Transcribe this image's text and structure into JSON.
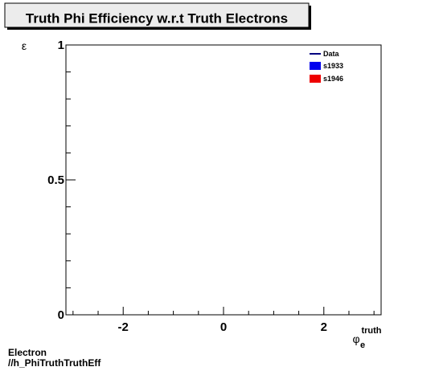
{
  "chart_data": {
    "type": "line",
    "title": "Truth Phi Efficiency w.r.t Truth Electrons",
    "ylabel": "ε",
    "xlabel_main": "φ",
    "xlabel_sub": "e",
    "xlabel_sup": "truth",
    "xlim": [
      -3.1416,
      3.1416
    ],
    "ylim": [
      0,
      1
    ],
    "x_ticks": [
      {
        "value": -2,
        "label": "-2"
      },
      {
        "value": 0,
        "label": "0"
      },
      {
        "value": 2,
        "label": "2"
      }
    ],
    "y_ticks": [
      {
        "value": 0,
        "label": "0"
      },
      {
        "value": 0.5,
        "label": "0.5"
      },
      {
        "value": 1,
        "label": "1"
      }
    ],
    "grid": false,
    "legend_position": "top-right",
    "series": [
      {
        "name": "Data",
        "style": "line",
        "color": "#000080",
        "values": []
      },
      {
        "name": "s1933",
        "style": "box",
        "color": "#0000ee",
        "values": []
      },
      {
        "name": "s1946",
        "style": "box",
        "color": "#ee0000",
        "values": []
      }
    ]
  },
  "footer": {
    "line1": "Electron",
    "line2": "//h_PhiTruthTruthEff"
  }
}
